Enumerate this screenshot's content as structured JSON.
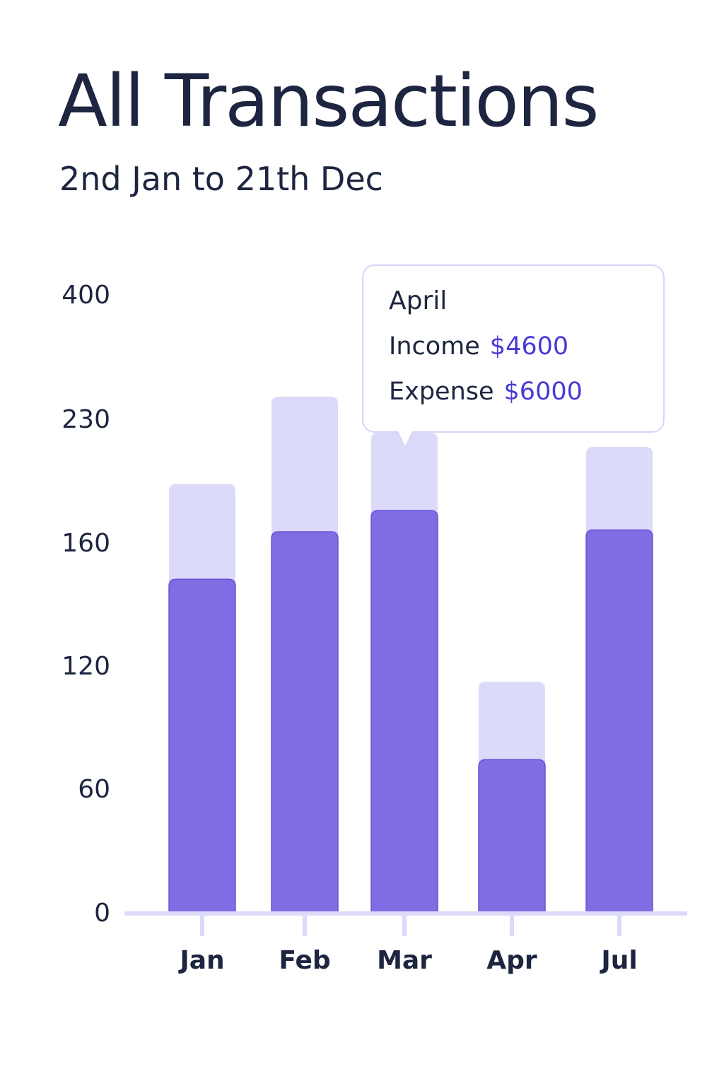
{
  "header": {
    "title": "All Transactions",
    "subtitle": "2nd Jan to 21th Dec"
  },
  "tooltip": {
    "month": "April",
    "income_label": "Income",
    "income_value": "$4600",
    "expense_label": "Expense",
    "expense_value": "$6000"
  },
  "colors": {
    "income": "#806ce3",
    "income_stroke": "#6a53d8",
    "expense": "#dcdaf9",
    "axis": "#dcdaf9",
    "text": "#1d2540",
    "accent": "#4a3ad6"
  },
  "chart_data": {
    "type": "bar",
    "title": "All Transactions",
    "subtitle": "2nd Jan to 21th Dec",
    "categories": [
      "Jan",
      "Feb",
      "Mar",
      "Apr",
      "Jul"
    ],
    "y_ticks": [
      0,
      60,
      120,
      160,
      230,
      400
    ],
    "series": [
      {
        "name": "Income",
        "values": [
          148,
          166,
          178,
          74,
          167
        ]
      },
      {
        "name": "Expense",
        "values": [
          193,
          260,
          222,
          112,
          214
        ]
      }
    ],
    "xlabel": "",
    "ylabel": "",
    "grid": false,
    "legend": "none",
    "annotation": {
      "label": "April",
      "Income": "$4600",
      "Expense": "$6000"
    }
  }
}
